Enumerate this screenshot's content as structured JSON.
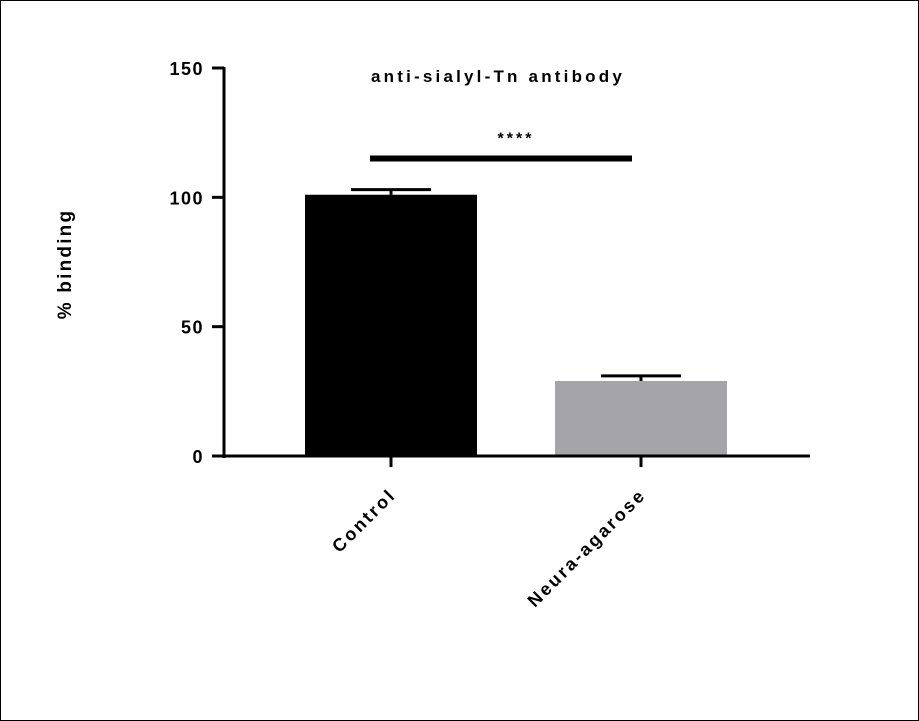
{
  "chart_data": {
    "type": "bar",
    "title": "anti-sialyl-Tn antibody",
    "ylabel": "% binding",
    "xlabel": "",
    "categories": [
      "Control",
      "Neura-agarose"
    ],
    "values": [
      101,
      29
    ],
    "errors": [
      2,
      2
    ],
    "bar_colors": [
      "#000000",
      "#a5a4a8"
    ],
    "ylim": [
      0,
      150
    ],
    "yticks": [
      0,
      50,
      100,
      150
    ],
    "ytick_labels": [
      "0",
      "50",
      "100",
      "150"
    ],
    "significance": {
      "between": [
        0,
        1
      ],
      "y": 115,
      "label": "****"
    },
    "grid": false,
    "legend": "none"
  }
}
